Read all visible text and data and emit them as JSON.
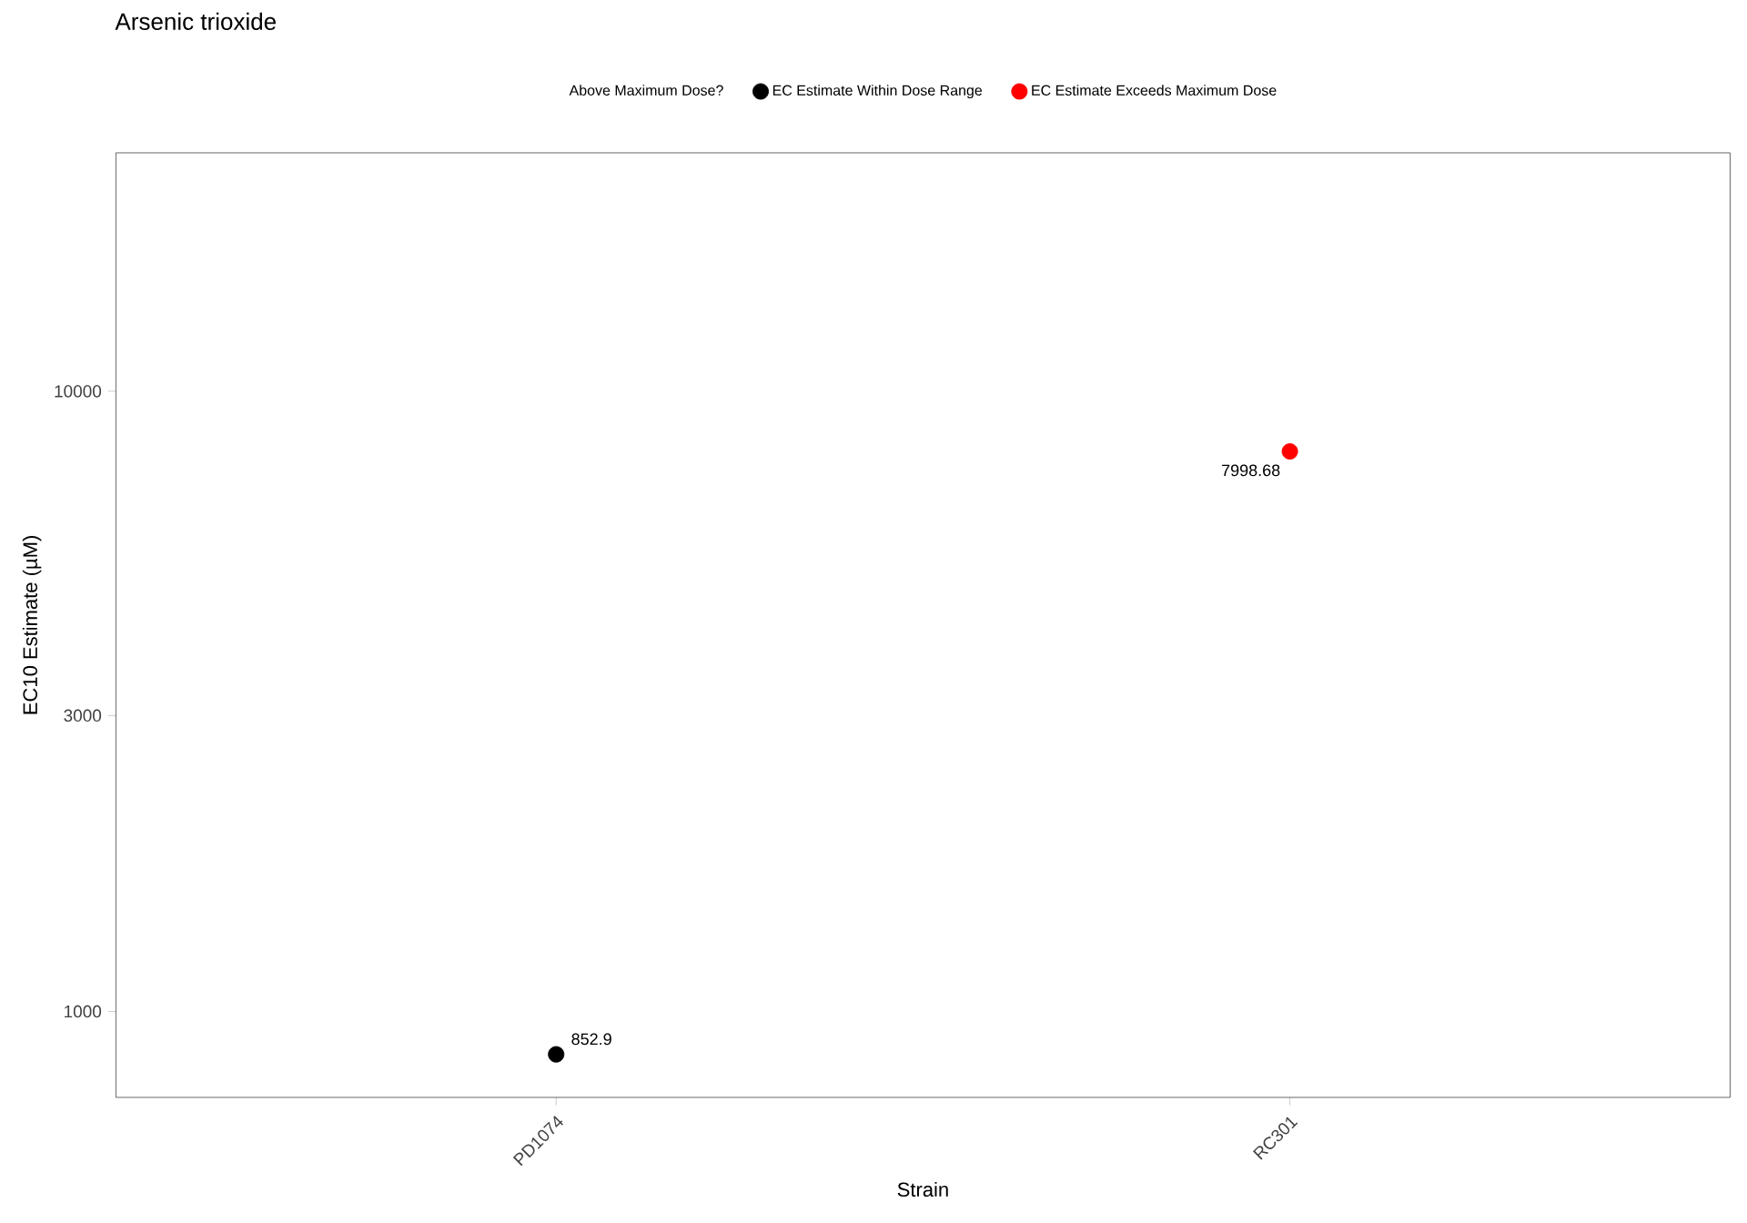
{
  "chart_data": {
    "type": "scatter",
    "title": "Arsenic trioxide",
    "xlabel": "Strain",
    "ylabel": "EC10 Estimate (µM)",
    "legend_title": "Above Maximum Dose?",
    "categories": [
      "PD1074",
      "RC301"
    ],
    "series": [
      {
        "name": "EC Estimate Within Dose Range",
        "color": "#000000",
        "values": [
          852.9,
          null
        ]
      },
      {
        "name": "EC Estimate Exceeds Maximum Dose",
        "color": "#ff0000",
        "values": [
          null,
          7998.68
        ]
      }
    ],
    "log": "y",
    "ylim": [
      727,
      24230
    ],
    "yticks": [
      1000,
      3000,
      10000
    ],
    "grid": false,
    "legend": "top",
    "data_labels": true
  }
}
